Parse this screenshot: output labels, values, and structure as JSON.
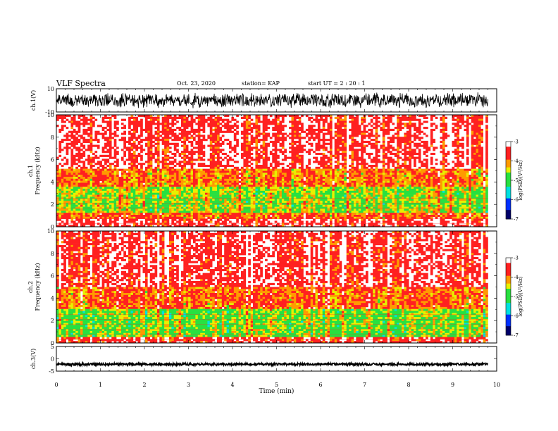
{
  "header": {
    "title": "VLF Spectra",
    "date": "Oct. 23, 2020",
    "station": "station= KAP",
    "start": "start  UT =   2  : 20 : 1"
  },
  "colors": {
    "white": "#ffffff",
    "red": "#ff2020",
    "orange": "#ff9a00",
    "yellow": "#e8f000",
    "green": "#28e040",
    "cyan": "#00e0e0",
    "blue": "#0030ff",
    "navy": "#00006a"
  },
  "chart_data": [
    {
      "type": "line",
      "panel": "ch1-waveform",
      "ylabel": "ch.1(V)",
      "xlim": [
        0,
        10
      ],
      "ylim": [
        -10,
        10
      ],
      "yticks": [
        "10",
        "-10"
      ],
      "signal": {
        "x_start": 0,
        "x_end": 9.8,
        "mean": 0,
        "amplitude_range": [
          -7,
          7
        ]
      }
    },
    {
      "type": "heatmap",
      "panel": "ch1-spectrogram",
      "ylabel": "ch.1\nFrequency (kHz)",
      "xlim": [
        0,
        10
      ],
      "ylim": [
        0,
        10
      ],
      "yticks": [
        "0",
        "2",
        "4",
        "6",
        "8",
        "10"
      ],
      "colorbar": {
        "label": "log(PSD)(V²/Hz)",
        "range": [
          -7,
          -3
        ],
        "ticks": [
          "-3",
          "-4",
          "-5",
          "-6",
          "-7"
        ]
      },
      "bands": [
        {
          "f_range": [
            0,
            0.8
          ],
          "level": -3.4
        },
        {
          "f_range": [
            0.8,
            1.3
          ],
          "level": -3.9
        },
        {
          "f_range": [
            1.3,
            3.6
          ],
          "level": -4.6
        },
        {
          "f_range": [
            3.6,
            5.2
          ],
          "level": -4.0
        },
        {
          "f_range": [
            5.2,
            10
          ],
          "level": -3.4
        }
      ]
    },
    {
      "type": "heatmap",
      "panel": "ch2-spectrogram",
      "ylabel": "ch.2\nFrequency (kHz)",
      "xlim": [
        0,
        10
      ],
      "ylim": [
        0,
        10
      ],
      "yticks": [
        "0",
        "2",
        "4",
        "6",
        "8",
        "10"
      ],
      "colorbar": {
        "label": "log(PSD)(V²/Hz)",
        "range": [
          -7,
          -3
        ],
        "ticks": [
          "-3",
          "-4",
          "-5",
          "-6",
          "-7"
        ]
      },
      "bands": [
        {
          "f_range": [
            0,
            0.6
          ],
          "level": -3.5
        },
        {
          "f_range": [
            0.6,
            3.0
          ],
          "level": -4.7
        },
        {
          "f_range": [
            3.0,
            5.0
          ],
          "level": -3.9
        },
        {
          "f_range": [
            5.0,
            10
          ],
          "level": -3.4
        }
      ]
    },
    {
      "type": "line",
      "panel": "ch3-waveform",
      "ylabel": "ch.3(V)",
      "xlabel": "Time  (min)",
      "xlim": [
        0,
        10
      ],
      "ylim": [
        -5,
        5
      ],
      "yticks": [
        "5",
        "0",
        "-5"
      ],
      "xticks": [
        "0",
        "1",
        "2",
        "3",
        "4",
        "5",
        "6",
        "7",
        "8",
        "9",
        "10"
      ],
      "signal": {
        "x_start": 0,
        "x_end": 9.8,
        "mean": -2.2,
        "amplitude_range": [
          -2.7,
          -1.7
        ]
      }
    }
  ]
}
